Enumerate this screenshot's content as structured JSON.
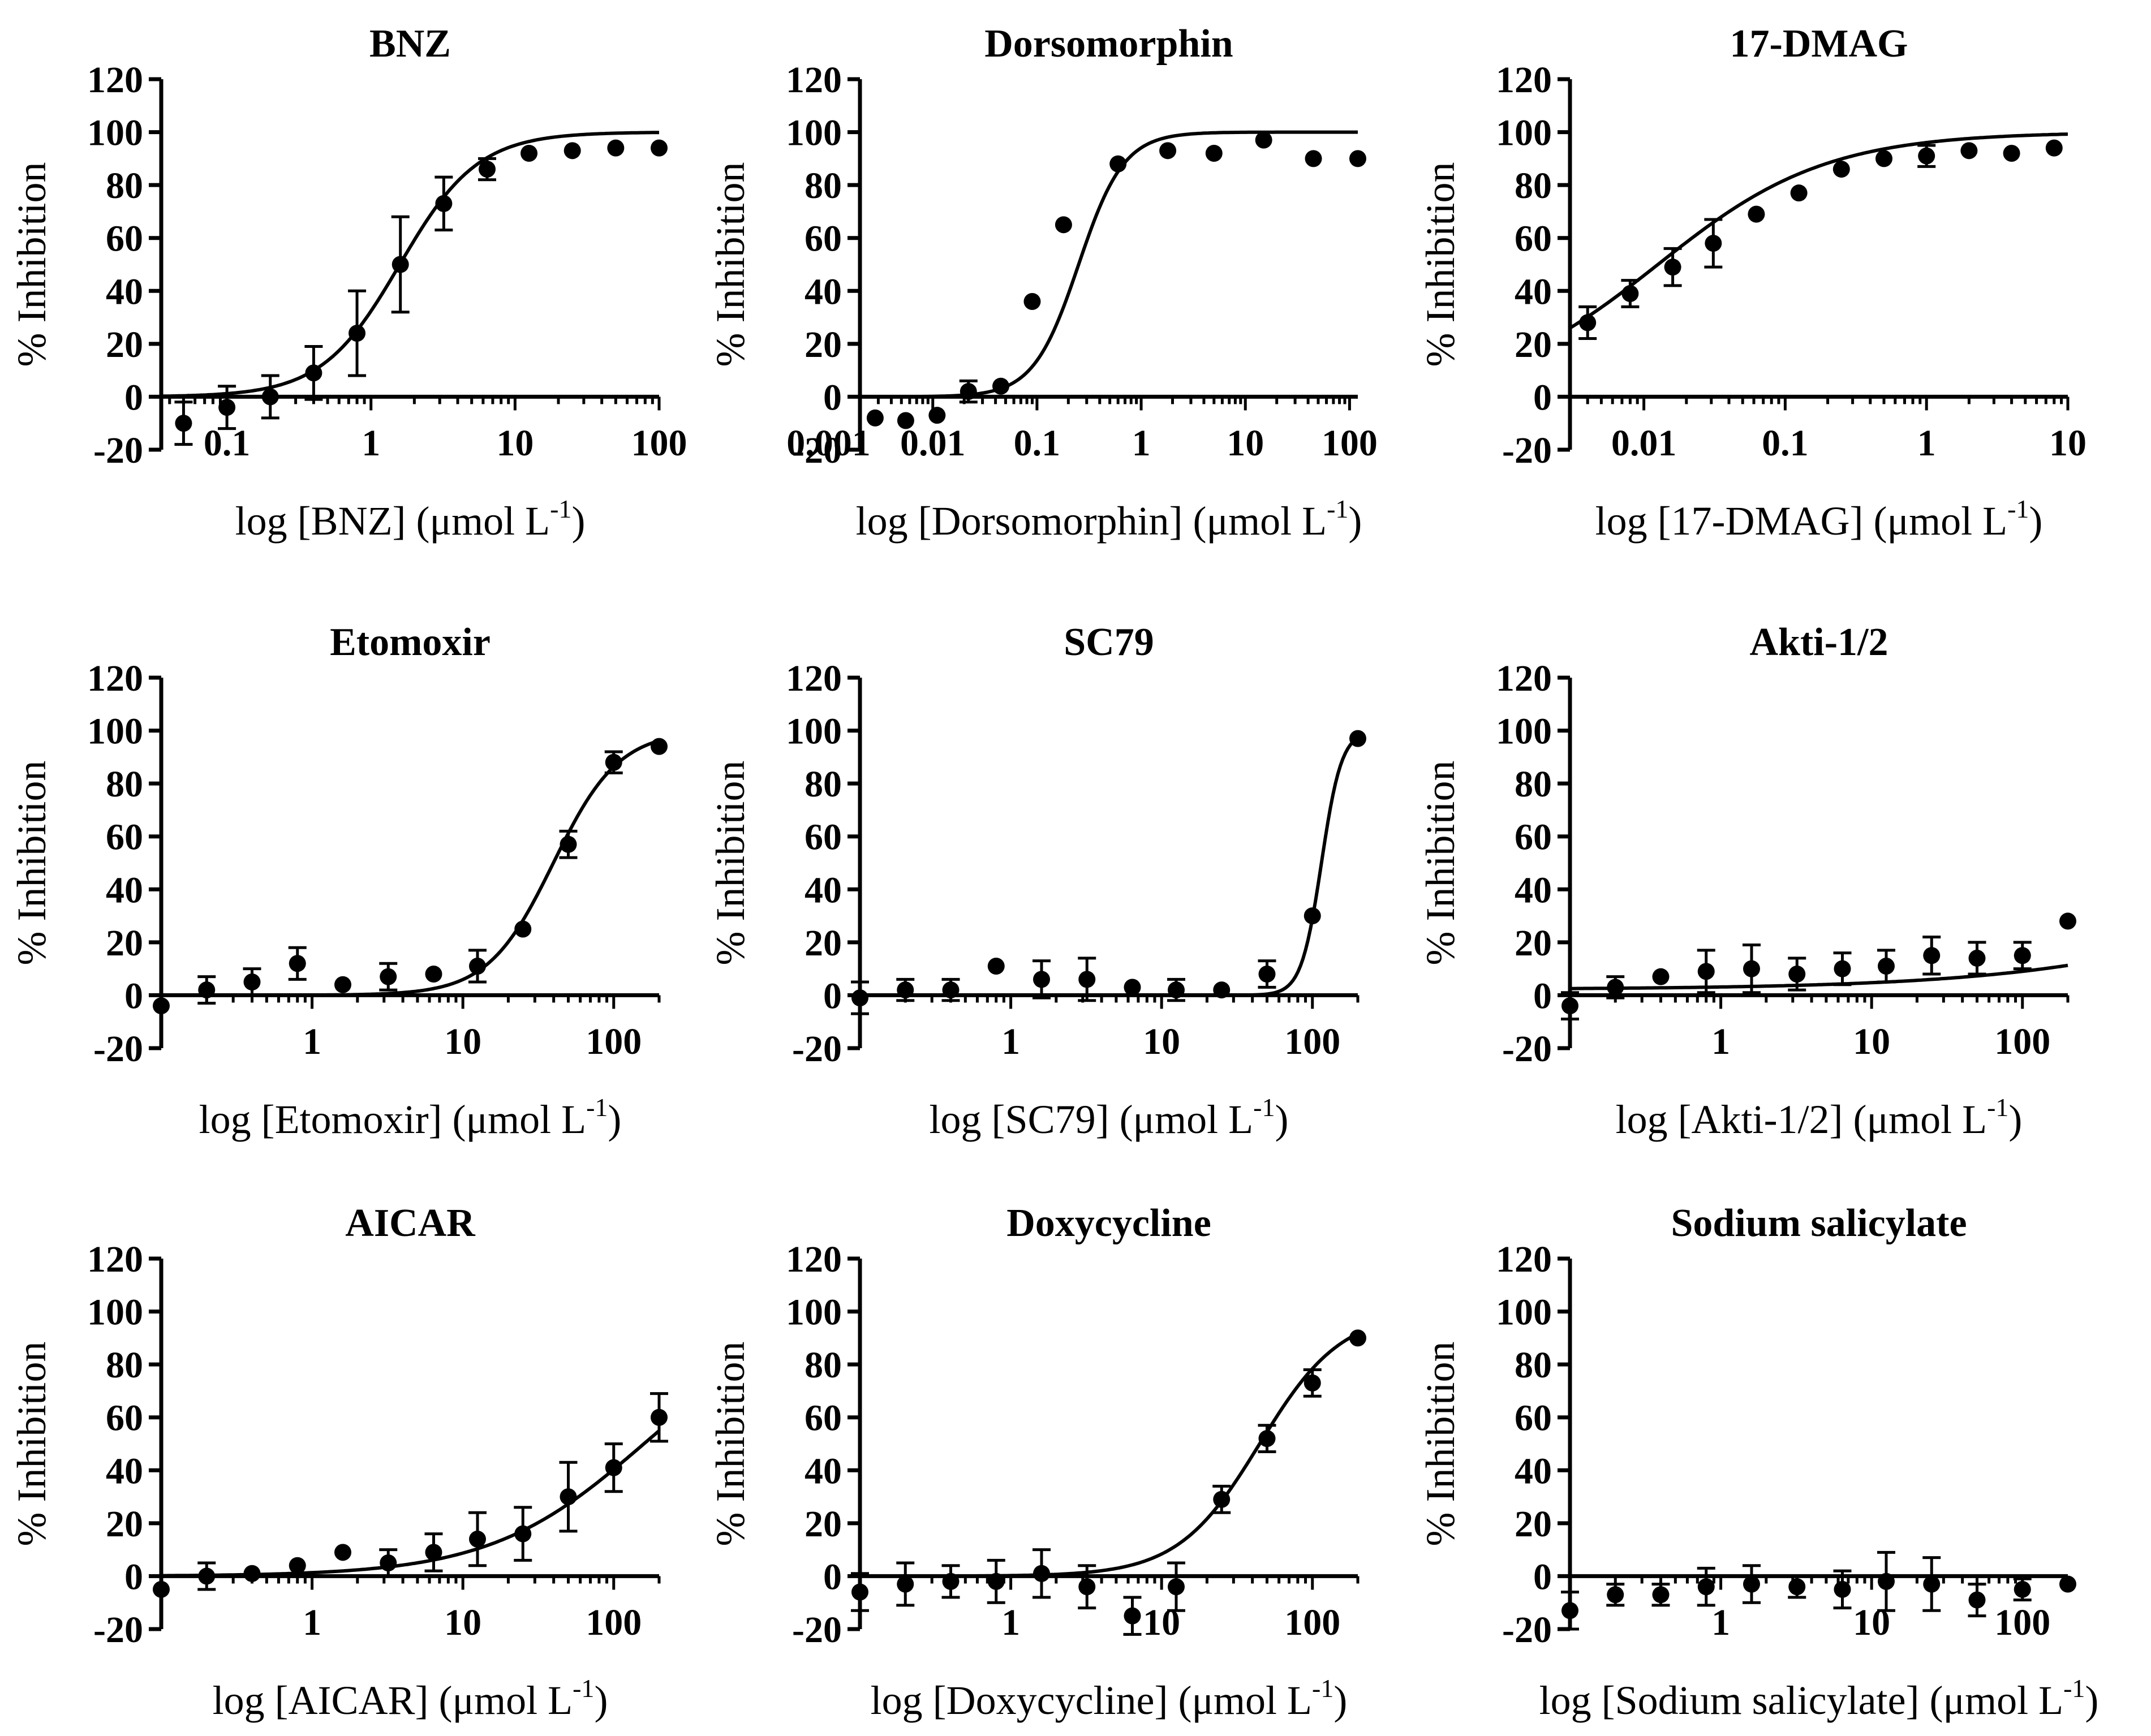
{
  "y_axis_label": "% Inhibition",
  "chart_data": [
    {
      "type": "scatter",
      "title": "BNZ",
      "xlabel_prefix": "log [BNZ] (μmol L",
      "xlabel_sup": "-1",
      "xlabel_suffix": ")",
      "ylabel": "% Inhibition",
      "xscale": "log",
      "xlim": [
        0.035,
        100
      ],
      "ylim": [
        -20,
        120
      ],
      "xticks": [
        0.1,
        1,
        10,
        100
      ],
      "xtick_labels": [
        "0.1",
        "1",
        "10",
        "100"
      ],
      "yticks": [
        -20,
        0,
        20,
        40,
        60,
        80,
        100,
        120
      ],
      "ytick_labels": [
        "-20",
        "0",
        "20",
        "40",
        "60",
        "80",
        "100",
        "120"
      ],
      "points": {
        "x": [
          0.05,
          0.1,
          0.2,
          0.4,
          0.8,
          1.6,
          3.2,
          6.4,
          12.5,
          25,
          50,
          100
        ],
        "y": [
          -10,
          -4,
          0,
          9,
          24,
          50,
          73,
          86,
          92,
          93,
          94,
          94
        ],
        "err": [
          8,
          8,
          8,
          10,
          16,
          18,
          10,
          4,
          0,
          0,
          0,
          0
        ]
      },
      "fit": {
        "bottom": 0,
        "top": 100,
        "log_ic50": 0.2,
        "hill": 1.6
      }
    },
    {
      "type": "scatter",
      "title": "Dorsomorphin",
      "xlabel_prefix": "log [Dorsomorphin] (μmol L",
      "xlabel_sup": "-1",
      "xlabel_suffix": ")",
      "ylabel": "% Inhibition",
      "xscale": "log",
      "xlim": [
        0.002,
        120
      ],
      "ylim": [
        -20,
        120
      ],
      "xticks": [
        0.001,
        0.01,
        0.1,
        1,
        10,
        100
      ],
      "xtick_labels": [
        "0.001",
        "0.01",
        "0.1",
        "1",
        "10",
        "100"
      ],
      "points": {
        "x": [
          0.0028,
          0.0055,
          0.011,
          0.022,
          0.045,
          0.09,
          0.18,
          0.6,
          1.8,
          5,
          15,
          45,
          120
        ],
        "y": [
          -8,
          -9,
          -7,
          2,
          4,
          36,
          65,
          88,
          93,
          92,
          97,
          90,
          90
        ],
        "err": [
          0,
          0,
          0,
          4,
          0,
          0,
          0,
          0,
          0,
          0,
          0,
          0,
          0
        ]
      },
      "fit": {
        "bottom": 0,
        "top": 100,
        "log_ic50": -0.6,
        "hill": 2.0
      }
    },
    {
      "type": "scatter",
      "title": "17-DMAG",
      "xlabel_prefix": "log [17-DMAG] (μmol L",
      "xlabel_sup": "-1",
      "xlabel_suffix": ")",
      "ylabel": "% Inhibition",
      "xscale": "log",
      "xlim": [
        0.003,
        10
      ],
      "ylim": [
        -20,
        120
      ],
      "xticks": [
        0.01,
        0.1,
        1,
        10
      ],
      "xtick_labels": [
        "0.01",
        "0.1",
        "1",
        "10"
      ],
      "points": {
        "x": [
          0.004,
          0.008,
          0.016,
          0.031,
          0.0625,
          0.125,
          0.25,
          0.5,
          1,
          2,
          4,
          8
        ],
        "y": [
          28,
          39,
          49,
          58,
          69,
          77,
          86,
          90,
          91,
          93,
          92,
          94
        ],
        "err": [
          6,
          5,
          7,
          9,
          0,
          0,
          0,
          0,
          4,
          0,
          0,
          0
        ]
      },
      "fit": {
        "bottom": 0,
        "top": 100,
        "log_ic50": -1.9,
        "hill": 0.73
      }
    },
    {
      "type": "scatter",
      "title": "Etomoxir",
      "xlabel_prefix": "log [Etomoxir] (μmol L",
      "xlabel_sup": "-1",
      "xlabel_suffix": ")",
      "ylabel": "% Inhibition",
      "xscale": "log",
      "xlim": [
        0.1,
        200
      ],
      "ylim": [
        -20,
        120
      ],
      "xticks": [
        1,
        10,
        100
      ],
      "xtick_labels": [
        "1",
        "10",
        "100"
      ],
      "points": {
        "x": [
          0.1,
          0.2,
          0.4,
          0.8,
          1.6,
          3.2,
          6.4,
          12.5,
          25,
          50,
          100,
          200
        ],
        "y": [
          -4,
          2,
          5,
          12,
          4,
          7,
          8,
          11,
          25,
          57,
          88,
          94
        ],
        "err": [
          0,
          5,
          5,
          6,
          0,
          5,
          0,
          6,
          0,
          5,
          4,
          0
        ]
      },
      "fit": {
        "bottom": 0,
        "top": 100,
        "log_ic50": 1.6,
        "hill": 2.0
      }
    },
    {
      "type": "scatter",
      "title": "SC79",
      "xlabel_prefix": "log [SC79] (μmol L",
      "xlabel_sup": "-1",
      "xlabel_suffix": ")",
      "ylabel": "% Inhibition",
      "xscale": "log",
      "xlim": [
        0.1,
        200
      ],
      "ylim": [
        -20,
        120
      ],
      "xticks": [
        1,
        10,
        100
      ],
      "xtick_labels": [
        "1",
        "10",
        "100"
      ],
      "points": {
        "x": [
          0.1,
          0.2,
          0.4,
          0.8,
          1.6,
          3.2,
          6.4,
          12.5,
          25,
          50,
          100,
          200
        ],
        "y": [
          -1,
          2,
          2,
          11,
          6,
          6,
          3,
          2,
          2,
          8,
          30,
          97
        ],
        "err": [
          6,
          4,
          4,
          0,
          7,
          8,
          0,
          4,
          0,
          5,
          0,
          0
        ]
      },
      "fit": {
        "bottom": 0,
        "top": 100,
        "log_ic50": 2.06,
        "hill": 6.5
      }
    },
    {
      "type": "scatter",
      "title": "Akti-1/2",
      "xlabel_prefix": "log [Akti-1/2] (μmol L",
      "xlabel_sup": "-1",
      "xlabel_suffix": ")",
      "ylabel": "% Inhibition",
      "xscale": "log",
      "xlim": [
        0.1,
        200
      ],
      "ylim": [
        -20,
        120
      ],
      "xticks": [
        1,
        10,
        100
      ],
      "xtick_labels": [
        "1",
        "10",
        "100"
      ],
      "points": {
        "x": [
          0.1,
          0.2,
          0.4,
          0.8,
          1.6,
          3.2,
          6.4,
          12.5,
          25,
          50,
          100,
          200
        ],
        "y": [
          -4,
          3,
          7,
          9,
          10,
          8,
          10,
          11,
          15,
          14,
          15,
          28
        ],
        "err": [
          5,
          4,
          0,
          8,
          9,
          6,
          6,
          6,
          7,
          6,
          5,
          0
        ]
      },
      "fit": {
        "bottom": 2.2,
        "top": 100,
        "log_ic50": 4.5,
        "hill": 0.45
      }
    },
    {
      "type": "scatter",
      "title": "AICAR",
      "xlabel_prefix": "log [AICAR] (μmol L",
      "xlabel_sup": "-1",
      "xlabel_suffix": ")",
      "ylabel": "% Inhibition",
      "xscale": "log",
      "xlim": [
        0.1,
        200
      ],
      "ylim": [
        -20,
        120
      ],
      "xticks": [
        1,
        10,
        100
      ],
      "xtick_labels": [
        "1",
        "10",
        "100"
      ],
      "points": {
        "x": [
          0.1,
          0.2,
          0.4,
          0.8,
          1.6,
          3.2,
          6.4,
          12.5,
          25,
          50,
          100,
          200
        ],
        "y": [
          -5,
          0,
          1,
          4,
          9,
          5,
          9,
          14,
          16,
          30,
          41,
          60
        ],
        "err": [
          0,
          5,
          0,
          0,
          0,
          5,
          7,
          10,
          10,
          13,
          9,
          9
        ]
      },
      "fit": {
        "bottom": 0,
        "top": 100,
        "log_ic50": 2.2,
        "hill": 0.85
      }
    },
    {
      "type": "scatter",
      "title": "Doxycycline",
      "xlabel_prefix": "log [Doxycycline] (μmol L",
      "xlabel_sup": "-1",
      "xlabel_suffix": ")",
      "ylabel": "% Inhibition",
      "xscale": "log",
      "xlim": [
        0.1,
        200
      ],
      "ylim": [
        -20,
        120
      ],
      "xticks": [
        1,
        10,
        100
      ],
      "xtick_labels": [
        "1",
        "10",
        "100"
      ],
      "points": {
        "x": [
          0.1,
          0.2,
          0.4,
          0.8,
          1.6,
          3.2,
          6.4,
          12.5,
          25,
          50,
          100,
          200
        ],
        "y": [
          -6,
          -3,
          -2,
          -2,
          1,
          -4,
          -15,
          -4,
          29,
          52,
          73,
          90
        ],
        "err": [
          7,
          8,
          6,
          8,
          9,
          8,
          7,
          9,
          5,
          5,
          5,
          0
        ]
      },
      "fit": {
        "bottom": 0,
        "top": 100,
        "log_ic50": 1.65,
        "hill": 1.6
      }
    },
    {
      "type": "scatter",
      "title": "Sodium salicylate",
      "xlabel_prefix": "log [Sodium salicylate] (μmol L",
      "xlabel_sup": "-1",
      "xlabel_suffix": ")",
      "ylabel": "% Inhibition",
      "xscale": "log",
      "xlim": [
        0.1,
        200
      ],
      "ylim": [
        -20,
        120
      ],
      "xticks": [
        1,
        10,
        100
      ],
      "xtick_labels": [
        "1",
        "10",
        "100"
      ],
      "points": {
        "x": [
          0.1,
          0.2,
          0.4,
          0.8,
          1.6,
          3.2,
          6.4,
          12.5,
          25,
          50,
          100,
          200
        ],
        "y": [
          -13,
          -7,
          -7,
          -4,
          -3,
          -4,
          -5,
          -2,
          -3,
          -9,
          -5,
          -3
        ],
        "err": [
          7,
          4,
          4,
          7,
          7,
          4,
          7,
          11,
          10,
          6,
          4,
          0
        ]
      },
      "fit": {
        "bottom": 0,
        "top": 0,
        "log_ic50": 1,
        "hill": 1
      }
    }
  ]
}
